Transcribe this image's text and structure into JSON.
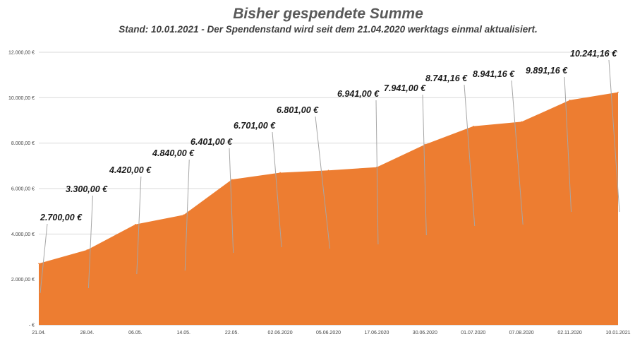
{
  "chart_data": {
    "type": "area",
    "title": "Bisher gespendete Summe",
    "subtitle": "Stand: 10.01.2021 - Der Spendenstand wird seit dem 21.04.2020 werktags einmal aktualisiert.",
    "categories": [
      "21.04.",
      "28.04.",
      "06.05.",
      "14.05.",
      "22.05.",
      "02.06.2020",
      "05.06.2020",
      "17.06.2020",
      "30.06.2020",
      "01.07.2020",
      "07.08.2020",
      "02.11.2020",
      "10.01.2021"
    ],
    "values": [
      2700,
      3300,
      4420,
      4840,
      6401,
      6701,
      6801,
      6941,
      7941,
      8741.16,
      8941.16,
      9891.16,
      10241.16
    ],
    "data_labels": [
      "2.700,00 €",
      "3.300,00 €",
      "4.420,00 €",
      "4.840,00 €",
      "6.401,00 €",
      "6.701,00 €",
      "6.801,00 €",
      "6.941,00 €",
      "7.941,00 €",
      "8.741,16 €",
      "8.941,16 €",
      "9.891,16 €",
      "10.241,16 €"
    ],
    "ylim": [
      0,
      12000
    ],
    "y_ticks": [
      0,
      2000,
      4000,
      6000,
      8000,
      10000,
      12000
    ],
    "y_tick_labels": [
      "-   €",
      "2.000,00 €",
      "4.000,00 €",
      "6.000,00 €",
      "8.000,00 €",
      "10.000,00 €",
      "12.000,00 €"
    ],
    "grid": true,
    "legend": "none",
    "colors": {
      "area": "#ED7D31",
      "grid": "#d9d9d9",
      "leader": "#a6a6a6"
    }
  }
}
